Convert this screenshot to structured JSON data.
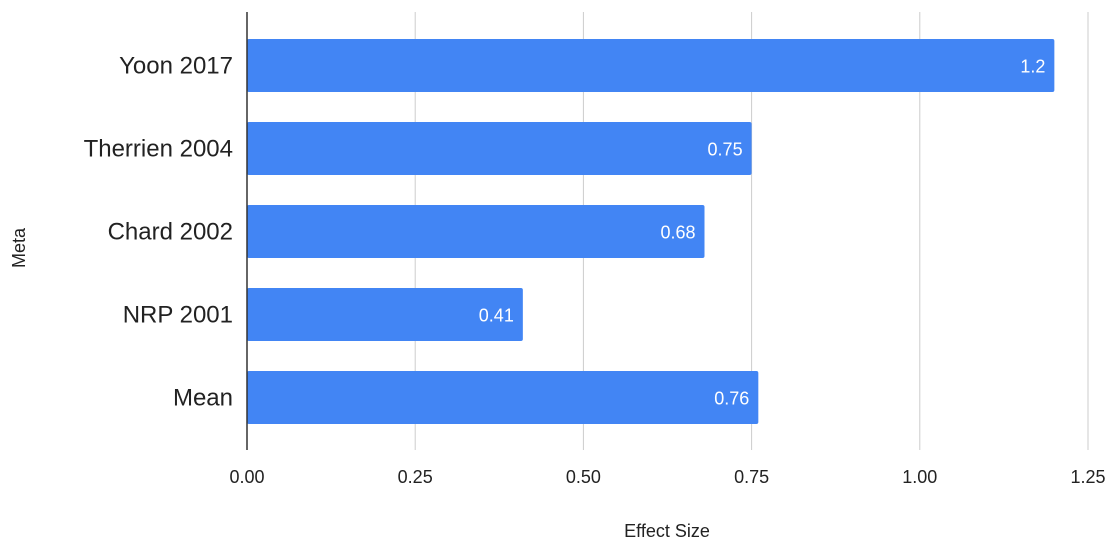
{
  "chart_data": {
    "type": "bar",
    "orientation": "horizontal",
    "categories": [
      "Yoon 2017",
      "Therrien 2004",
      "Chard 2002",
      "NRP 2001",
      "Mean"
    ],
    "series": [
      {
        "values": [
          1.2,
          0.75,
          0.68,
          0.41,
          0.76
        ],
        "data_labels": [
          "1.2",
          "0.75",
          "0.68",
          "0.41",
          "0.76"
        ]
      }
    ],
    "xlabel": "Effect Size",
    "ylabel": "Meta",
    "xlim": [
      0,
      1.25
    ],
    "xticks": [
      0,
      0.25,
      0.5,
      0.75,
      1,
      1.25
    ],
    "xtick_labels": [
      "0.00",
      "0.25",
      "0.50",
      "0.75",
      "1.00",
      "1.25"
    ],
    "grid": true,
    "legend": "none",
    "bar_color": "#4285f4"
  }
}
